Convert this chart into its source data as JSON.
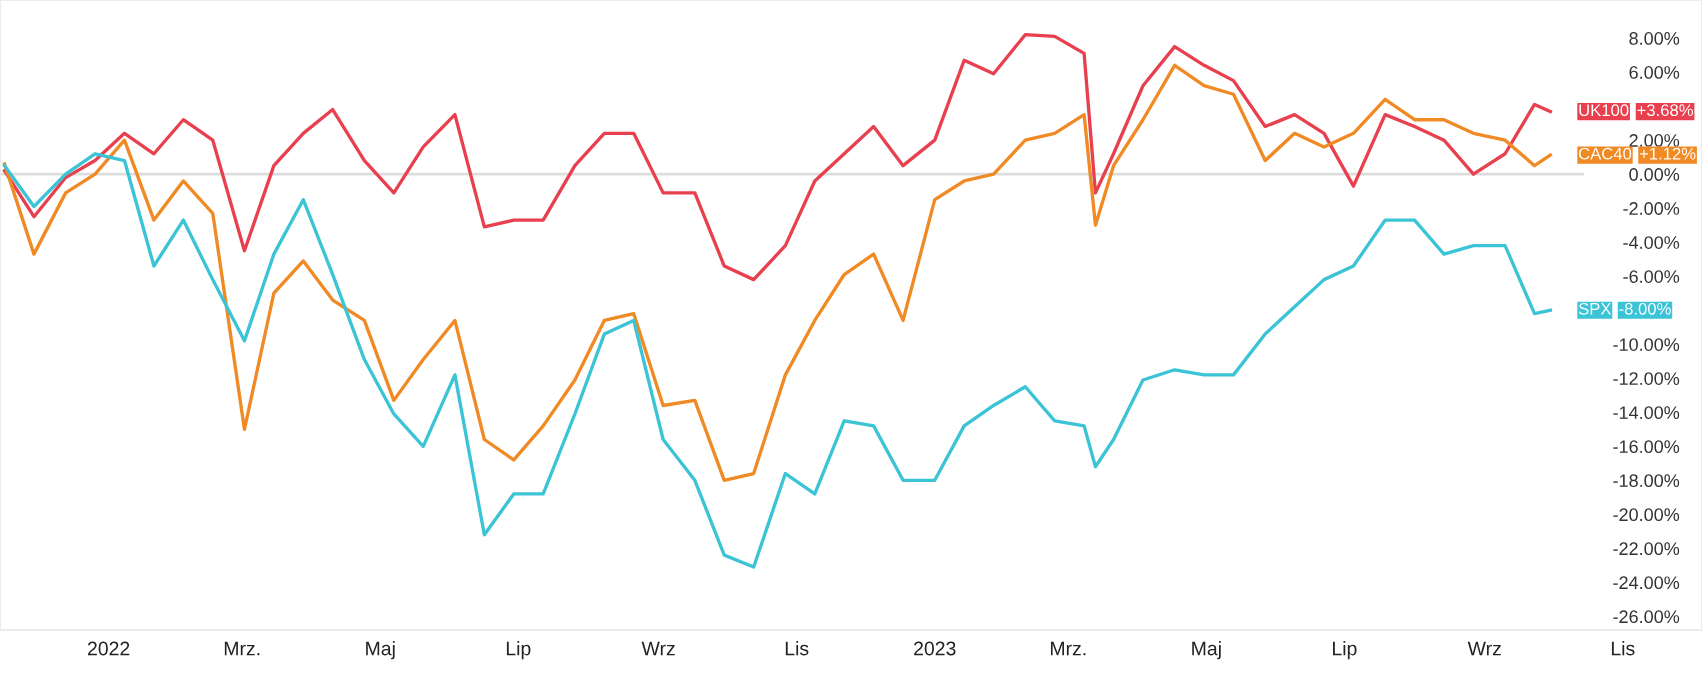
{
  "chart_data": {
    "type": "line",
    "x": [
      "2021-11-16",
      "2021-11-29",
      "2021-12-13",
      "2021-12-26",
      "2022-01-08",
      "2022-01-21",
      "2022-02-03",
      "2022-02-16",
      "2022-03-02",
      "2022-03-15",
      "2022-03-28",
      "2022-04-10",
      "2022-04-24",
      "2022-05-07",
      "2022-05-20",
      "2022-06-03",
      "2022-06-16",
      "2022-06-29",
      "2022-07-12",
      "2022-07-26",
      "2022-08-08",
      "2022-08-21",
      "2022-09-03",
      "2022-09-17",
      "2022-09-30",
      "2022-10-13",
      "2022-10-27",
      "2022-11-09",
      "2022-11-22",
      "2022-12-05",
      "2022-12-18",
      "2023-01-01",
      "2023-01-14",
      "2023-01-27",
      "2023-02-10",
      "2023-02-23",
      "2023-03-08",
      "2023-03-13",
      "2023-03-21",
      "2023-04-03",
      "2023-04-17",
      "2023-04-30",
      "2023-05-13",
      "2023-05-27",
      "2023-06-09",
      "2023-06-22",
      "2023-07-05",
      "2023-07-19",
      "2023-08-01",
      "2023-08-14",
      "2023-08-27",
      "2023-09-10",
      "2023-09-23",
      "2023-09-30"
    ],
    "series": [
      {
        "name": "UK100",
        "color": "#e8404f",
        "values": [
          0.2,
          -2.5,
          -0.2,
          0.8,
          2.4,
          1.2,
          3.2,
          2.0,
          -4.5,
          0.5,
          2.4,
          3.8,
          0.8,
          -1.1,
          1.6,
          3.5,
          -3.1,
          -2.7,
          -2.7,
          0.5,
          2.4,
          2.4,
          -1.1,
          -1.1,
          -5.4,
          -6.2,
          -4.2,
          -0.4,
          1.2,
          2.8,
          0.5,
          2.0,
          6.7,
          5.9,
          8.2,
          8.1,
          7.1,
          -1.1,
          1.2,
          5.2,
          7.5,
          6.4,
          5.5,
          2.8,
          3.5,
          2.4,
          -0.7,
          3.5,
          2.8,
          2.0,
          0.0,
          1.2,
          4.1,
          3.68
        ]
      },
      {
        "name": "CAC40",
        "color": "#f08a24",
        "values": [
          0.6,
          -4.7,
          -1.1,
          0.0,
          2.0,
          -2.7,
          -0.4,
          -2.3,
          -15.0,
          -7.0,
          -5.1,
          -7.4,
          -8.6,
          -13.3,
          -10.9,
          -8.6,
          -15.6,
          -16.8,
          -14.8,
          -12.1,
          -8.6,
          -8.2,
          -13.6,
          -13.3,
          -18.0,
          -17.6,
          -11.8,
          -8.6,
          -5.9,
          -4.7,
          -8.6,
          -1.5,
          -0.4,
          0.0,
          2.0,
          2.4,
          3.5,
          -3.0,
          0.5,
          3.2,
          6.4,
          5.2,
          4.7,
          0.8,
          2.4,
          1.6,
          2.4,
          4.4,
          3.2,
          3.2,
          2.4,
          2.0,
          0.5,
          1.12
        ]
      },
      {
        "name": "SPX",
        "color": "#3bc3d6",
        "values": [
          0.5,
          -1.9,
          0.0,
          1.2,
          0.8,
          -5.4,
          -2.7,
          -6.2,
          -9.8,
          -4.7,
          -1.5,
          -5.9,
          -10.9,
          -14.1,
          -16.0,
          -11.8,
          -21.2,
          -18.8,
          -18.8,
          -14.1,
          -9.4,
          -8.6,
          -15.6,
          -18.0,
          -22.4,
          -23.1,
          -17.6,
          -18.8,
          -14.5,
          -14.8,
          -18.0,
          -18.0,
          -14.8,
          -13.6,
          -12.5,
          -14.5,
          -14.8,
          -17.2,
          -15.6,
          -12.1,
          -11.5,
          -11.8,
          -11.8,
          -9.4,
          -7.8,
          -6.2,
          -5.4,
          -2.7,
          -2.7,
          -4.7,
          -4.2,
          -4.2,
          -8.2,
          -8.0
        ]
      }
    ],
    "annotations": [
      "+3.68%",
      "+1.12%",
      "-8.00%"
    ],
    "ref_lines": [
      {
        "axis": "y",
        "value": 0,
        "color": "#dddddd"
      }
    ],
    "xlim": [
      "2021-11-14",
      "2023-12-06"
    ],
    "xticks": [
      {
        "value": "2022-01-01",
        "label": "2022"
      },
      {
        "value": "2022-03-01",
        "label": "Mrz."
      },
      {
        "value": "2022-05-01",
        "label": "Maj"
      },
      {
        "value": "2022-07-01",
        "label": "Lip"
      },
      {
        "value": "2022-09-01",
        "label": "Wrz"
      },
      {
        "value": "2022-11-01",
        "label": "Lis"
      },
      {
        "value": "2023-01-01",
        "label": "2023"
      },
      {
        "value": "2023-03-01",
        "label": "Mrz."
      },
      {
        "value": "2023-05-01",
        "label": "Maj"
      },
      {
        "value": "2023-07-01",
        "label": "Lip"
      },
      {
        "value": "2023-09-01",
        "label": "Wrz"
      },
      {
        "value": "2023-11-01",
        "label": "Lis"
      }
    ],
    "ylim": [
      -26.8,
      10.24
    ],
    "yticks": [
      {
        "value": 8,
        "label": "8.00%"
      },
      {
        "value": 6,
        "label": "6.00%"
      },
      {
        "value": 2,
        "label": "2.00%"
      },
      {
        "value": 0,
        "label": "0.00%"
      },
      {
        "value": -2,
        "label": "-2.00%"
      },
      {
        "value": -4,
        "label": "-4.00%"
      },
      {
        "value": -6,
        "label": "-6.00%"
      },
      {
        "value": -10,
        "label": "-10.00%"
      },
      {
        "value": -12,
        "label": "-12.00%"
      },
      {
        "value": -14,
        "label": "-14.00%"
      },
      {
        "value": -16,
        "label": "-16.00%"
      },
      {
        "value": -18,
        "label": "-18.00%"
      },
      {
        "value": -20,
        "label": "-20.00%"
      },
      {
        "value": -22,
        "label": "-22.00%"
      },
      {
        "value": -24,
        "label": "-24.00%"
      },
      {
        "value": -26,
        "label": "-26.00%"
      }
    ],
    "grid": false,
    "legend": "right",
    "marker": "none",
    "line_style": "solid"
  }
}
